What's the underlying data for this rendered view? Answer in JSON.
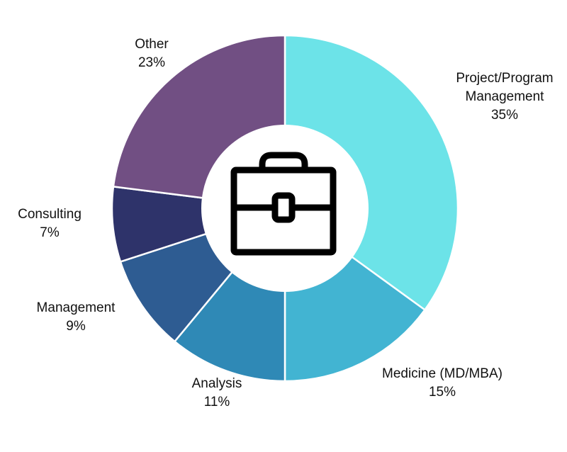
{
  "chart_data": {
    "type": "pie",
    "variant": "donut",
    "center_icon": "briefcase-icon",
    "slices": [
      {
        "name": "Project/Program Management",
        "label_lines": [
          "Project/Program",
          "Management"
        ],
        "value": 35,
        "value_label": "35%",
        "color": "#6CE3E8"
      },
      {
        "name": "Medicine (MD/MBA)",
        "label_lines": [
          "Medicine (MD/MBA)"
        ],
        "value": 15,
        "value_label": "15%",
        "color": "#42B4D2"
      },
      {
        "name": "Analysis",
        "label_lines": [
          "Analysis"
        ],
        "value": 11,
        "value_label": "11%",
        "color": "#2F89B6"
      },
      {
        "name": "Management",
        "label_lines": [
          "Management"
        ],
        "value": 9,
        "value_label": "9%",
        "color": "#2E5C92"
      },
      {
        "name": "Consulting",
        "label_lines": [
          "Consulting"
        ],
        "value": 7,
        "value_label": "7%",
        "color": "#2E336A"
      },
      {
        "name": "Other",
        "label_lines": [
          "Other"
        ],
        "value": 23,
        "value_label": "23%",
        "color": "#714F83"
      }
    ]
  }
}
